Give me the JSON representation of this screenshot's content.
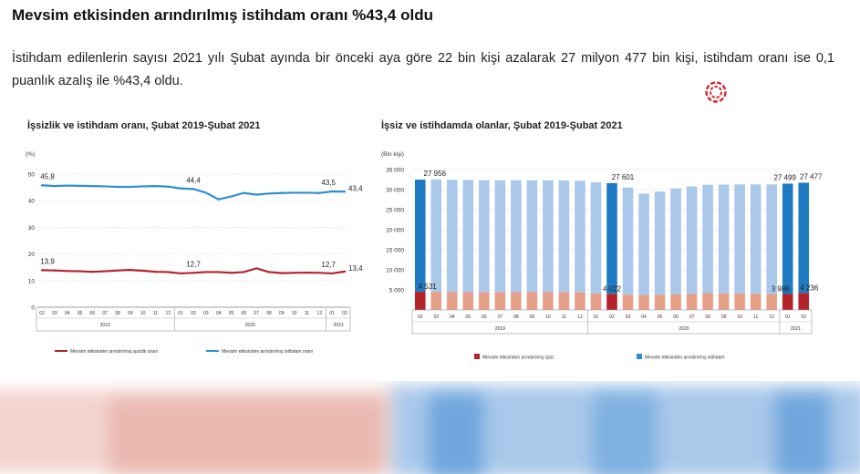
{
  "article": {
    "headline": "Mevsim etkisinden arındırılmış istihdam oranı %43,4 oldu",
    "lead": "İstihdam edilenlerin sayısı 2021 yılı Şubat ayında bir önceki aya göre 22 bin kişi azalarak 27 milyon 477 bin kişi, istihdam oranı ise 0,1 puanlık azalış ile %43,4 oldu.",
    "logo_icon": "tuik-logo-icon"
  },
  "colors": {
    "red": "#b5232a",
    "blue": "#2f8fd1",
    "lightblue": "#a9c8ea",
    "salmon": "#e6a08a",
    "darkblue": "#1f7ac4"
  },
  "chart_data": [
    {
      "type": "line",
      "title": "İşsizlik ve istihdam oranı, Şubat 2019-Şubat 2021",
      "ylabel": "(%)",
      "ylim": [
        0,
        50
      ],
      "yticks": [
        "0",
        "10",
        "20",
        "30",
        "40",
        "50"
      ],
      "categories": [
        "02",
        "03",
        "04",
        "05",
        "06",
        "07",
        "08",
        "09",
        "10",
        "11",
        "12",
        "01",
        "02",
        "03",
        "04",
        "05",
        "06",
        "07",
        "08",
        "09",
        "10",
        "11",
        "12",
        "01",
        "02"
      ],
      "year_labels": [
        "2019",
        "2020",
        "2021"
      ],
      "series": [
        {
          "name": "Mevsim etkisinden arındırılmış işsizlik oranı",
          "color": "#b5232a",
          "values": [
            13.9,
            13.8,
            13.6,
            13.5,
            13.3,
            13.5,
            13.8,
            14.0,
            13.7,
            13.3,
            13.2,
            12.7,
            12.9,
            13.2,
            13.2,
            12.9,
            13.2,
            14.6,
            13.2,
            12.8,
            12.9,
            13.0,
            12.9,
            12.7,
            13.4
          ]
        },
        {
          "name": "Mevsim etkisinden arındırılmış istihdam oranı",
          "color": "#2f8fd1",
          "values": [
            45.8,
            45.5,
            45.7,
            45.6,
            45.5,
            45.4,
            45.2,
            45.2,
            45.4,
            45.5,
            45.3,
            44.6,
            44.4,
            43.0,
            40.5,
            41.6,
            42.9,
            42.3,
            42.7,
            42.9,
            43.0,
            43.0,
            42.9,
            43.5,
            43.4
          ]
        }
      ],
      "data_labels": [
        {
          "text": "45,8",
          "series": 1,
          "index": 0
        },
        {
          "text": "44,4",
          "series": 1,
          "index": 12
        },
        {
          "text": "43,5",
          "series": 1,
          "index": 23
        },
        {
          "text": "43,4",
          "series": 1,
          "index": 24
        },
        {
          "text": "13,9",
          "series": 0,
          "index": 0
        },
        {
          "text": "12,7",
          "series": 0,
          "index": 12
        },
        {
          "text": "12,7",
          "series": 0,
          "index": 23
        },
        {
          "text": "13,4",
          "series": 0,
          "index": 24
        }
      ],
      "grid": true,
      "legend": "bottom"
    },
    {
      "type": "bar",
      "title": "İşsiz ve istihdamda olanlar, Şubat 2019-Şubat 2021",
      "ylabel": "(Bin kişi)",
      "ylim": [
        0,
        35000
      ],
      "yticks": [
        "5 000",
        "10 000",
        "15 000",
        "20 000",
        "25 000",
        "30 000",
        "35 000"
      ],
      "categories": [
        "02",
        "03",
        "04",
        "05",
        "06",
        "07",
        "08",
        "09",
        "10",
        "11",
        "12",
        "01",
        "02",
        "03",
        "04",
        "05",
        "06",
        "07",
        "08",
        "09",
        "10",
        "11",
        "12",
        "01",
        "02"
      ],
      "year_labels": [
        "2019",
        "2020",
        "2021"
      ],
      "series": [
        {
          "name": "Mevsim etkisinden arındırılmış işsiz",
          "color": "#b5232a",
          "values": [
            4531,
            4500,
            4450,
            4420,
            4400,
            4400,
            4420,
            4460,
            4430,
            4400,
            4350,
            4100,
            4022,
            3800,
            3700,
            3800,
            3900,
            4000,
            4200,
            4150,
            4100,
            4050,
            4000,
            3986,
            4236
          ]
        },
        {
          "name": "Mevsim etkisinden arındırılmış istihdam",
          "color": "#2f8fd1",
          "values": [
            27956,
            28050,
            28000,
            28000,
            27950,
            27900,
            27900,
            27850,
            27880,
            27900,
            27850,
            27700,
            27601,
            26700,
            25300,
            25700,
            26400,
            26800,
            27000,
            27100,
            27200,
            27250,
            27300,
            27499,
            27477
          ]
        }
      ],
      "data_labels": [
        {
          "text": "27 956",
          "series": 1,
          "index": 0
        },
        {
          "text": "27 601",
          "series": 1,
          "index": 12
        },
        {
          "text": "27 499",
          "series": 1,
          "index": 23
        },
        {
          "text": "27 477",
          "series": 1,
          "index": 24
        },
        {
          "text": "4 531",
          "series": 0,
          "index": 0
        },
        {
          "text": "4 022",
          "series": 0,
          "index": 12
        },
        {
          "text": "3 986",
          "series": 0,
          "index": 23
        },
        {
          "text": "4 236",
          "series": 0,
          "index": 24
        }
      ],
      "highlighted": [
        0,
        12,
        23,
        24
      ],
      "grid": true,
      "legend": "bottom"
    }
  ]
}
